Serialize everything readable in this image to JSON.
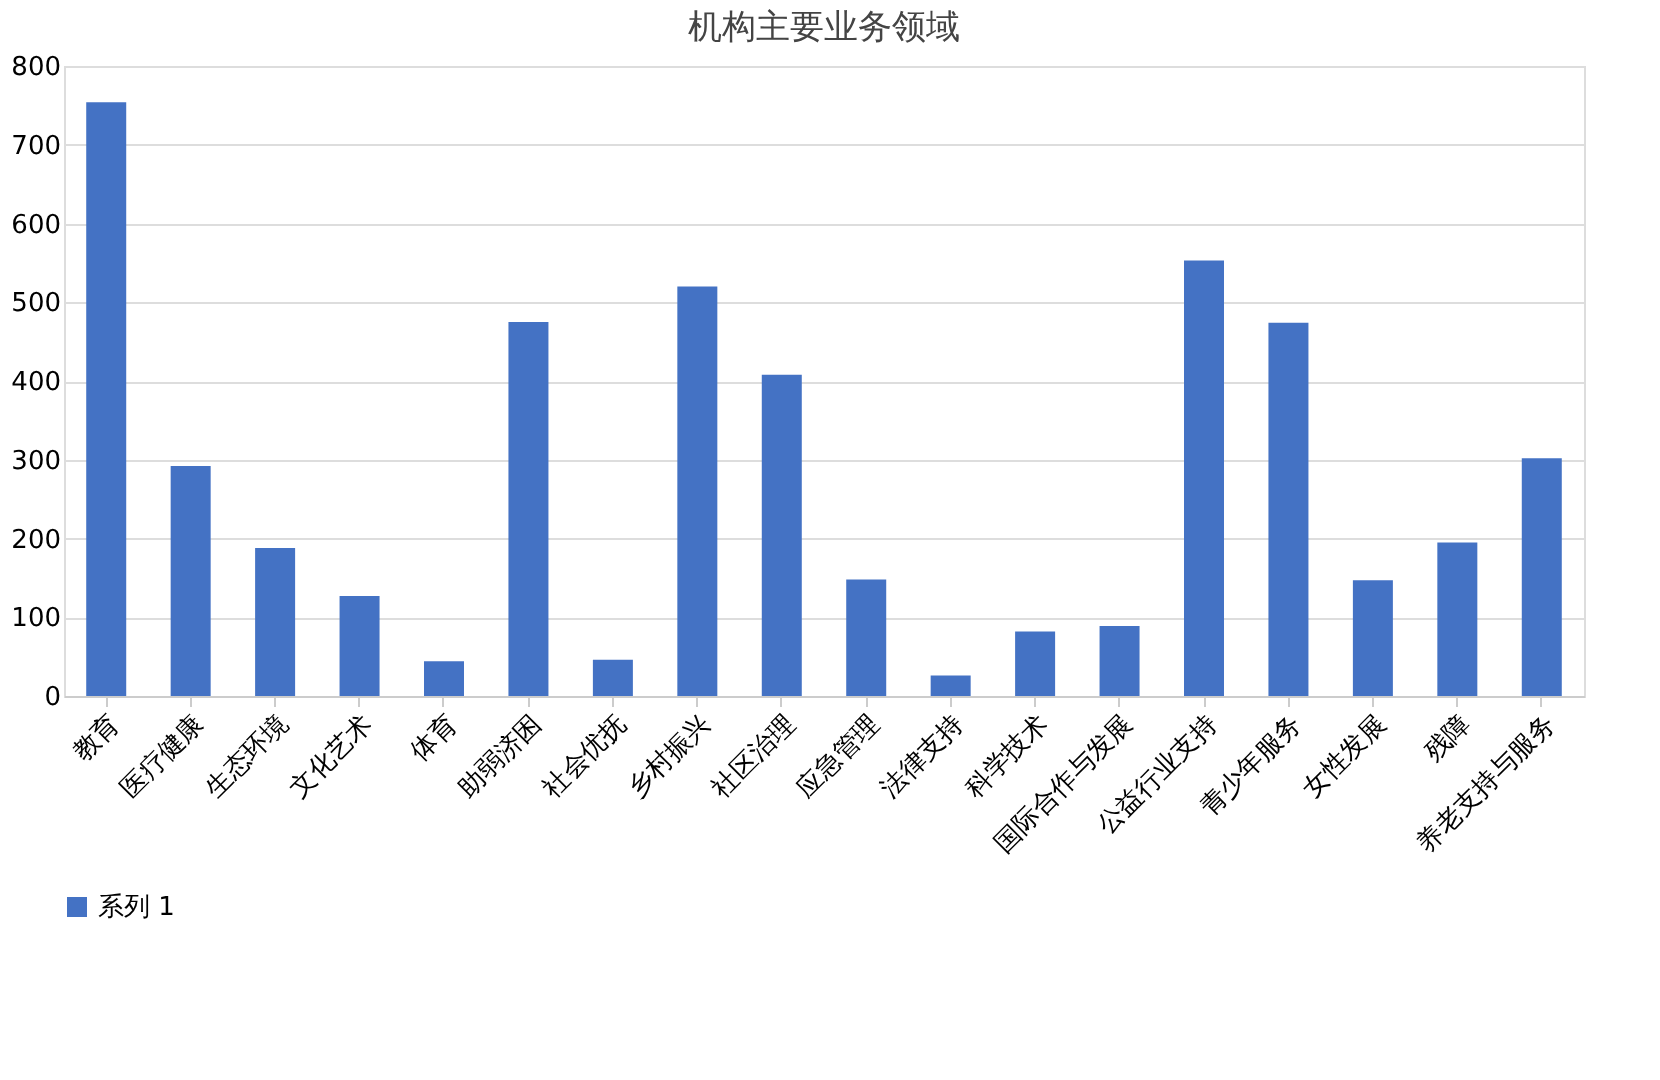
{
  "chart_data": {
    "type": "bar",
    "title": "机构主要业务领域",
    "categories": [
      "教育",
      "医疗健康",
      "生态环境",
      "文化艺术",
      "体育",
      "助弱济困",
      "社会优抚",
      "乡村振兴",
      "社区治理",
      "应急管理",
      "法律支持",
      "科学技术",
      "国际合作与发展",
      "公益行业支持",
      "青少年服务",
      "女性发展",
      "残障",
      "养老支持与服务"
    ],
    "series": [
      {
        "name": "系列 1",
        "color": "#4472c4",
        "values": [
          754,
          292,
          188,
          127,
          44,
          475,
          46,
          520,
          408,
          148,
          26,
          82,
          89,
          553,
          474,
          147,
          195,
          302
        ]
      }
    ],
    "ylim": [
      0,
      800
    ],
    "yticks": [
      0,
      100,
      200,
      300,
      400,
      500,
      600,
      700,
      800
    ],
    "grid": "y",
    "legend": "bottom"
  }
}
